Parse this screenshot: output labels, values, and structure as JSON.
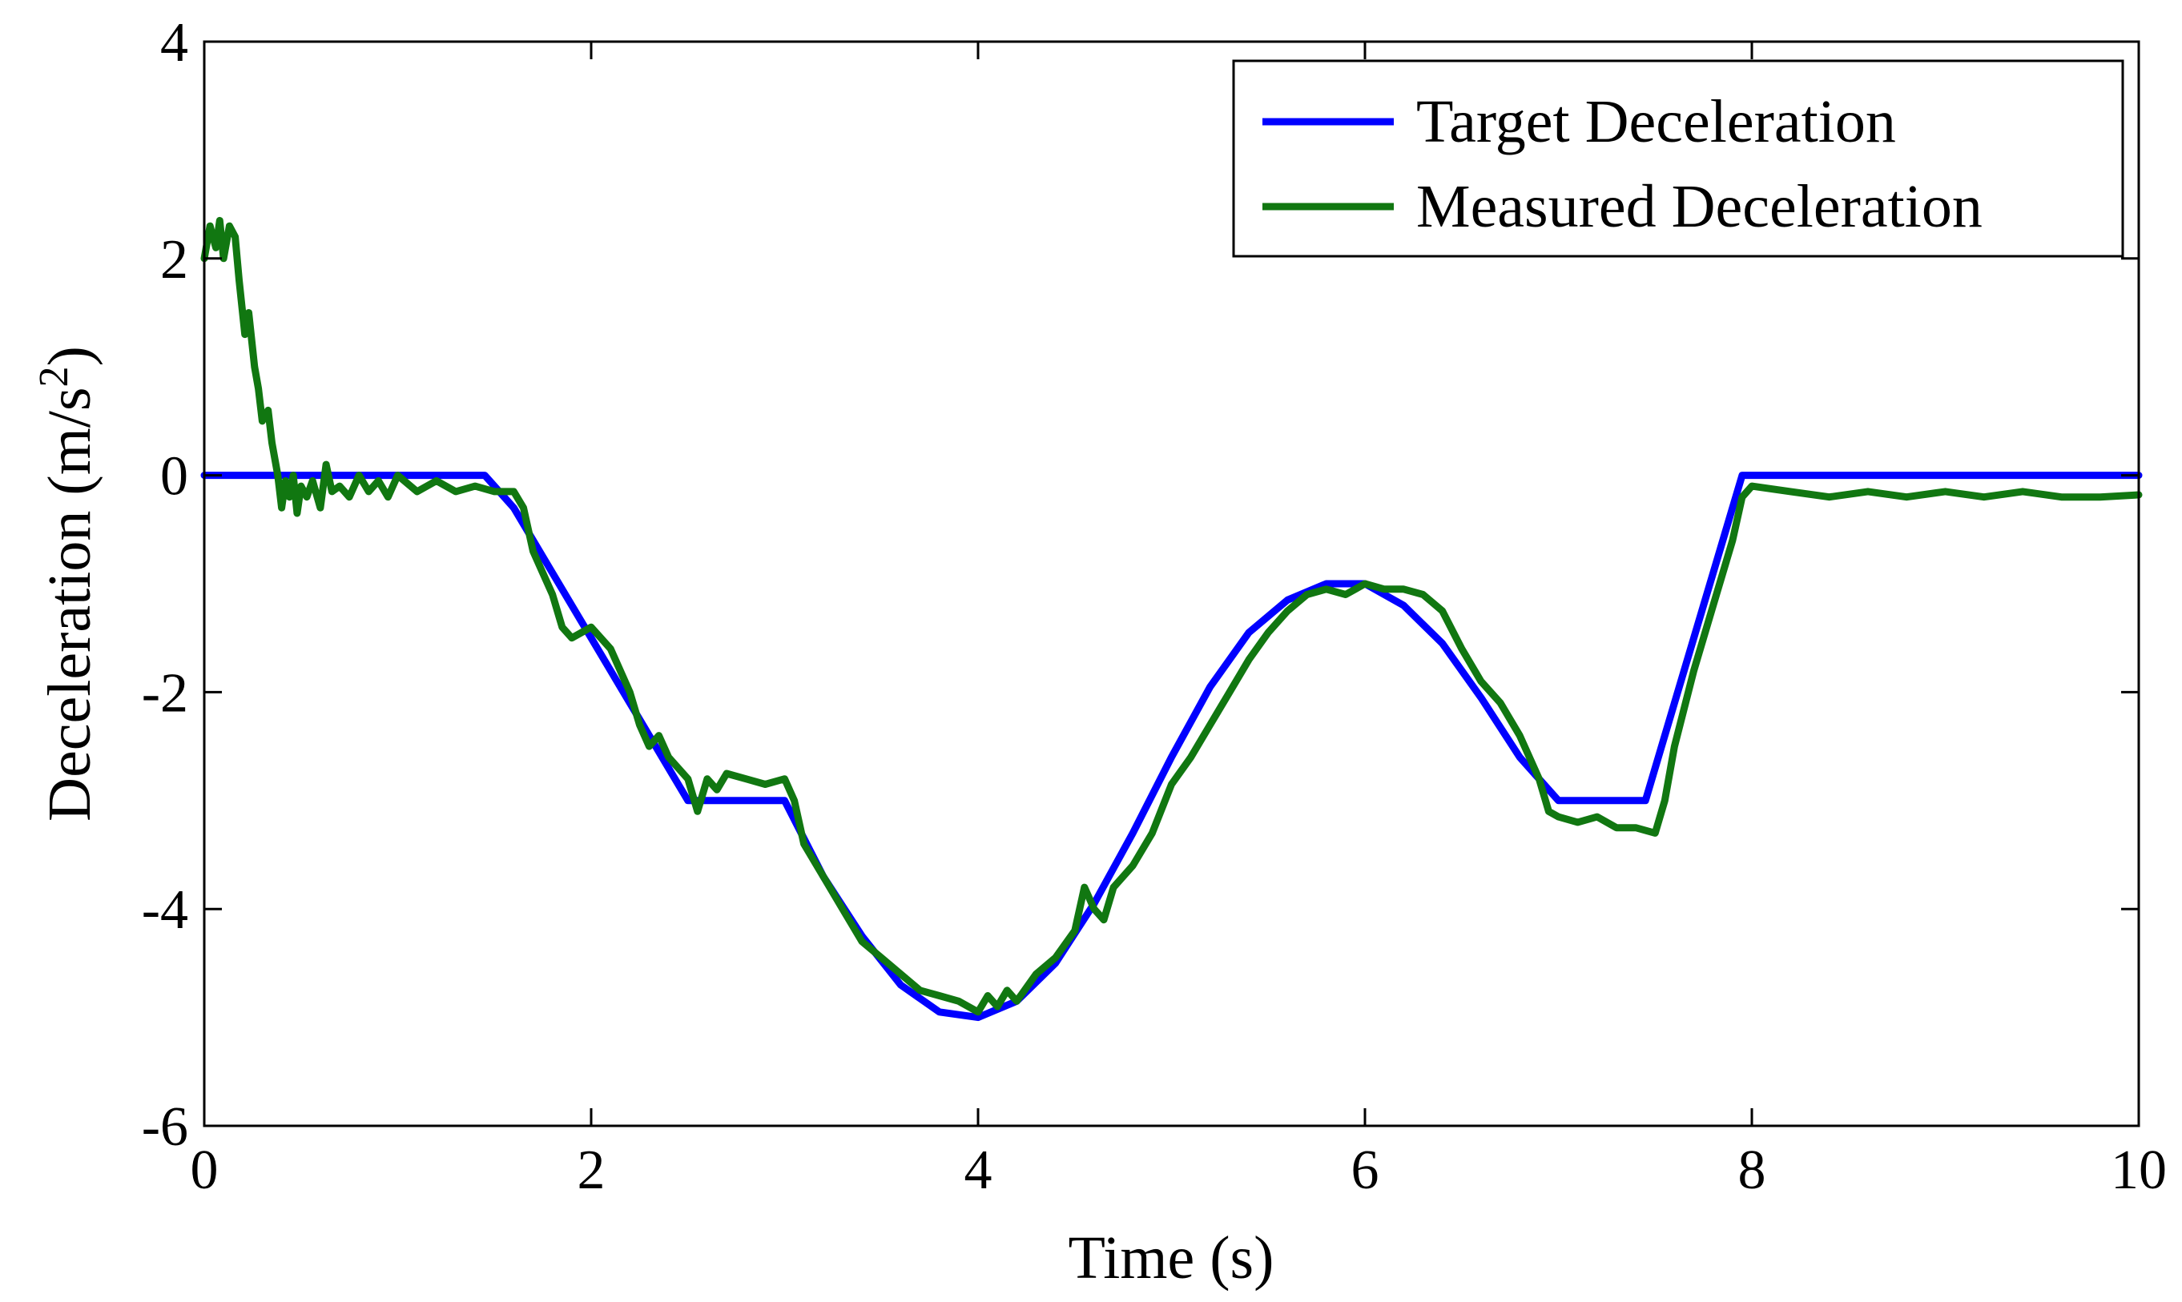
{
  "chart_data": {
    "type": "line",
    "title": "",
    "xlabel": "Time (s)",
    "ylabel": "Deceleration (m/s",
    "ylabel_superscript": "2",
    "ylabel_close": ")",
    "xlim": [
      0,
      10
    ],
    "ylim": [
      -6,
      4
    ],
    "xticks": [
      0,
      2,
      4,
      6,
      8,
      10
    ],
    "yticks": [
      -6,
      -4,
      -2,
      0,
      2,
      4
    ],
    "xtick_labels": [
      "0",
      "2",
      "4",
      "6",
      "8",
      "10"
    ],
    "ytick_labels": [
      "-6",
      "-4",
      "-2",
      "0",
      "2",
      "4"
    ],
    "grid": false,
    "legend_position": "top-right",
    "series": [
      {
        "name": "Target Deceleration",
        "color": "#0000ff",
        "x": [
          0,
          1.45,
          1.6,
          1.8,
          2.0,
          2.2,
          2.4,
          2.5,
          3.0,
          3.2,
          3.4,
          3.6,
          3.8,
          4.0,
          4.2,
          4.4,
          4.6,
          4.8,
          5.0,
          5.2,
          5.4,
          5.6,
          5.8,
          6.0,
          6.2,
          6.4,
          6.6,
          6.8,
          7.0,
          7.45,
          7.6,
          7.8,
          7.95,
          10
        ],
        "y": [
          0,
          0,
          -0.3,
          -0.9,
          -1.5,
          -2.1,
          -2.7,
          -3.0,
          -3.0,
          -3.7,
          -4.25,
          -4.7,
          -4.95,
          -5.0,
          -4.85,
          -4.5,
          -3.95,
          -3.3,
          -2.6,
          -1.95,
          -1.45,
          -1.15,
          -1.0,
          -1.0,
          -1.2,
          -1.55,
          -2.05,
          -2.6,
          -3.0,
          -3.0,
          -2.1,
          -0.9,
          0,
          0
        ]
      },
      {
        "name": "Measured Deceleration",
        "color": "#117711",
        "x": [
          0.0,
          0.03,
          0.06,
          0.08,
          0.1,
          0.13,
          0.16,
          0.18,
          0.21,
          0.23,
          0.26,
          0.28,
          0.3,
          0.33,
          0.35,
          0.38,
          0.4,
          0.42,
          0.44,
          0.46,
          0.48,
          0.5,
          0.53,
          0.56,
          0.6,
          0.63,
          0.66,
          0.7,
          0.75,
          0.8,
          0.85,
          0.9,
          0.95,
          1.0,
          1.1,
          1.2,
          1.3,
          1.4,
          1.5,
          1.6,
          1.65,
          1.7,
          1.75,
          1.8,
          1.85,
          1.9,
          2.0,
          2.1,
          2.2,
          2.25,
          2.3,
          2.35,
          2.4,
          2.5,
          2.55,
          2.6,
          2.65,
          2.7,
          2.8,
          2.9,
          3.0,
          3.05,
          3.1,
          3.2,
          3.3,
          3.4,
          3.5,
          3.6,
          3.7,
          3.8,
          3.9,
          4.0,
          4.05,
          4.1,
          4.15,
          4.2,
          4.3,
          4.4,
          4.5,
          4.55,
          4.6,
          4.65,
          4.7,
          4.8,
          4.9,
          5.0,
          5.1,
          5.2,
          5.3,
          5.4,
          5.5,
          5.6,
          5.7,
          5.8,
          5.9,
          5.95,
          6.0,
          6.1,
          6.2,
          6.3,
          6.4,
          6.5,
          6.6,
          6.7,
          6.8,
          6.9,
          6.95,
          7.0,
          7.1,
          7.2,
          7.3,
          7.4,
          7.5,
          7.55,
          7.6,
          7.7,
          7.8,
          7.9,
          7.95,
          8.0,
          8.2,
          8.4,
          8.6,
          8.8,
          9.0,
          9.2,
          9.4,
          9.6,
          9.8,
          10.0
        ],
        "y": [
          2.0,
          2.3,
          2.1,
          2.35,
          2.0,
          2.3,
          2.2,
          1.8,
          1.3,
          1.5,
          1.0,
          0.8,
          0.5,
          0.6,
          0.3,
          0.0,
          -0.3,
          -0.05,
          -0.2,
          0.0,
          -0.35,
          -0.1,
          -0.2,
          -0.05,
          -0.3,
          0.1,
          -0.15,
          -0.1,
          -0.2,
          0.0,
          -0.15,
          -0.05,
          -0.2,
          0.0,
          -0.15,
          -0.05,
          -0.15,
          -0.1,
          -0.15,
          -0.15,
          -0.3,
          -0.7,
          -0.9,
          -1.1,
          -1.4,
          -1.5,
          -1.4,
          -1.6,
          -2.0,
          -2.3,
          -2.5,
          -2.4,
          -2.6,
          -2.8,
          -3.1,
          -2.8,
          -2.9,
          -2.75,
          -2.8,
          -2.85,
          -2.8,
          -3.0,
          -3.4,
          -3.7,
          -4.0,
          -4.3,
          -4.45,
          -4.6,
          -4.75,
          -4.8,
          -4.85,
          -4.95,
          -4.8,
          -4.9,
          -4.75,
          -4.85,
          -4.6,
          -4.45,
          -4.2,
          -3.8,
          -4.0,
          -4.1,
          -3.8,
          -3.6,
          -3.3,
          -2.85,
          -2.6,
          -2.3,
          -2.0,
          -1.7,
          -1.45,
          -1.25,
          -1.1,
          -1.05,
          -1.1,
          -1.05,
          -1.0,
          -1.05,
          -1.05,
          -1.1,
          -1.25,
          -1.6,
          -1.9,
          -2.1,
          -2.4,
          -2.8,
          -3.1,
          -3.15,
          -3.2,
          -3.15,
          -3.25,
          -3.25,
          -3.3,
          -3.0,
          -2.5,
          -1.8,
          -1.2,
          -0.6,
          -0.2,
          -0.1,
          -0.15,
          -0.2,
          -0.15,
          -0.2,
          -0.15,
          -0.2,
          -0.15,
          -0.2,
          -0.2,
          -0.18
        ]
      }
    ]
  }
}
